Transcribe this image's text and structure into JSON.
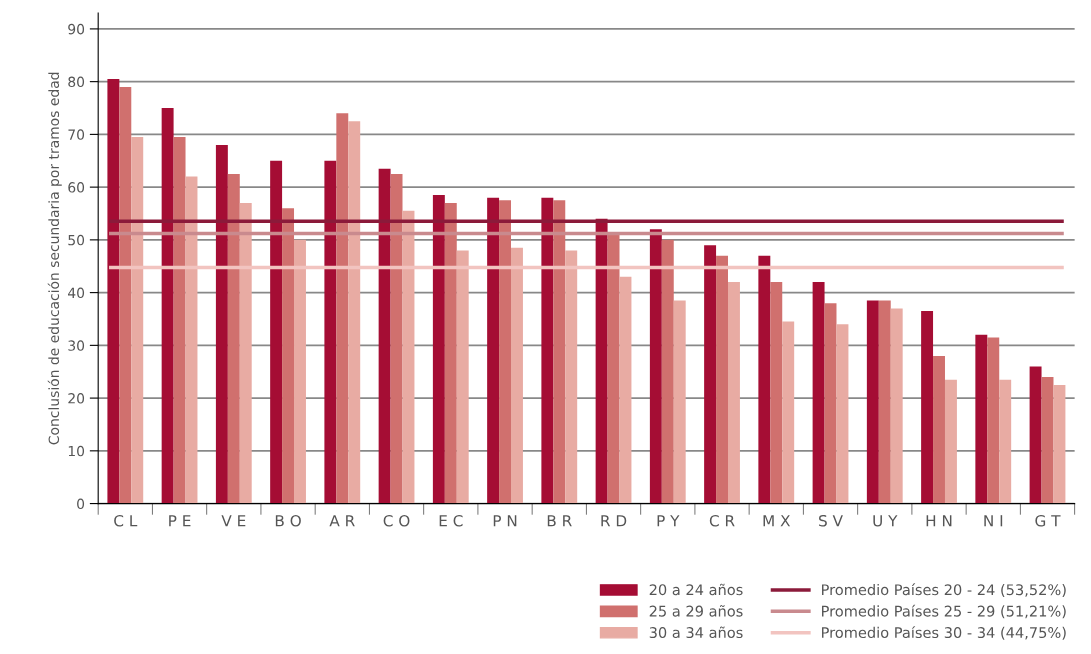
{
  "chart_data": {
    "type": "bar",
    "ylabel": "Conclusión de educación secundaria por tramos edad",
    "categories": [
      "C L",
      "P E",
      "V E",
      "B O",
      "A R",
      "C O",
      "E C",
      "P N",
      "B R",
      "R D",
      "P Y",
      "C R",
      "M X",
      "S V",
      "U Y",
      "H N",
      "N I",
      "G T"
    ],
    "series": [
      {
        "name": "20 a 24 años",
        "color": "#a50d34",
        "values": [
          80.5,
          75,
          68,
          65,
          65,
          63.5,
          58.5,
          58,
          58,
          54,
          52,
          49,
          47,
          42,
          38.5,
          36.5,
          32,
          26
        ]
      },
      {
        "name": "25 a 29 años",
        "color": "#d0706e",
        "values": [
          79,
          69.5,
          62.5,
          56,
          74,
          62.5,
          57,
          57.5,
          57.5,
          51,
          50,
          47,
          42,
          38,
          38.5,
          28,
          31.5,
          24
        ]
      },
      {
        "name": "30 a 34 años",
        "color": "#e8aba3",
        "values": [
          69.5,
          62,
          57,
          50,
          72.5,
          55.5,
          48,
          48.5,
          48,
          43,
          38.5,
          42,
          34.5,
          34,
          37,
          23.5,
          23.5,
          22.5
        ]
      }
    ],
    "ref_lines": [
      {
        "axis": "y",
        "value": 53.52,
        "label": "Promedio Países 20 - 24 (53,52%)",
        "color": "#8b1a3a"
      },
      {
        "axis": "y",
        "value": 51.21,
        "label": "Promedio Países 25 - 29 (51,21%)",
        "color": "#c98a8e"
      },
      {
        "axis": "y",
        "value": 44.75,
        "label": "Promedio Países 30 - 34 (44,75%)",
        "color": "#f2c4c0"
      }
    ],
    "ylim": [
      0,
      93
    ],
    "yticks": [
      0,
      10,
      20,
      30,
      40,
      50,
      60,
      70,
      80,
      90
    ],
    "grid": "y",
    "legend": "bottom right"
  }
}
